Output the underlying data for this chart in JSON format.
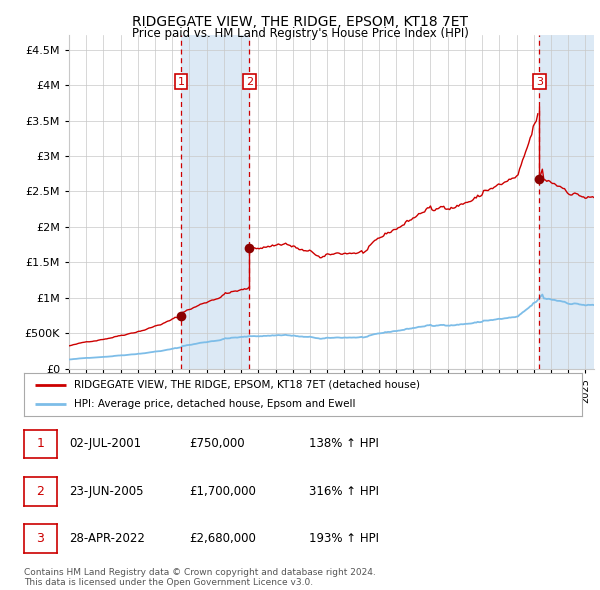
{
  "title": "RIDGEGATE VIEW, THE RIDGE, EPSOM, KT18 7ET",
  "subtitle": "Price paid vs. HM Land Registry's House Price Index (HPI)",
  "footer": "Contains HM Land Registry data © Crown copyright and database right 2024.\nThis data is licensed under the Open Government Licence v3.0.",
  "legend_line1": "RIDGEGATE VIEW, THE RIDGE, EPSOM, KT18 7ET (detached house)",
  "legend_line2": "HPI: Average price, detached house, Epsom and Ewell",
  "sales": [
    {
      "num": 1,
      "date": "02-JUL-2001",
      "price": 750000,
      "hpi_pct": "138% ↑ HPI"
    },
    {
      "num": 2,
      "date": "23-JUN-2005",
      "price": 1700000,
      "hpi_pct": "316% ↑ HPI"
    },
    {
      "num": 3,
      "date": "28-APR-2022",
      "price": 2680000,
      "hpi_pct": "193% ↑ HPI"
    }
  ],
  "sale_dates_decimal": [
    2001.5,
    2005.47,
    2022.32
  ],
  "sale_prices": [
    750000,
    1700000,
    2680000
  ],
  "hpi_color": "#7dbde8",
  "price_color": "#cc0000",
  "sale_marker_color": "#8b0000",
  "vline_color": "#cc0000",
  "shade_color": "#dce9f5",
  "grid_color": "#c8c8c8",
  "bg_color": "#ffffff",
  "ylim": [
    0,
    4700000
  ],
  "xlim_start": 1995.0,
  "xlim_end": 2025.5
}
